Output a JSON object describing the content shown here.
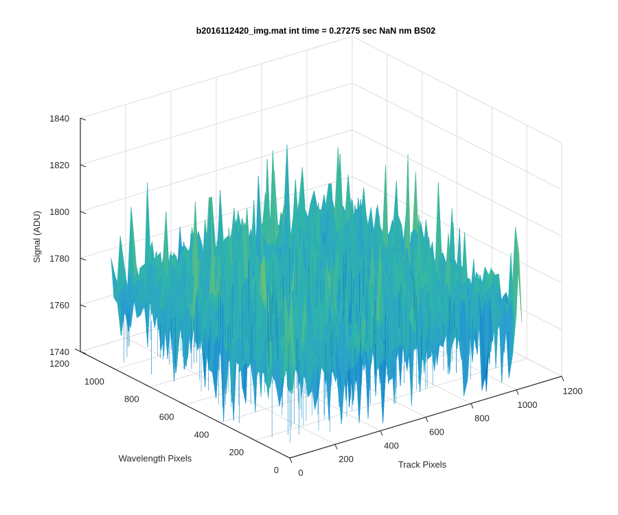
{
  "chart_data": {
    "type": "surface",
    "title": "b2016112420_img.mat int time = 0.27275 sec  NaN nm BS02",
    "xlabel": "Track Pixels",
    "ylabel": "Wavelength Pixels",
    "zlabel": "Signal (ADU)",
    "xlim": [
      0,
      1200
    ],
    "ylim": [
      0,
      1200
    ],
    "zlim": [
      1740,
      1840
    ],
    "x_ticks": [
      "0",
      "200",
      "400",
      "600",
      "800",
      "1000",
      "1200"
    ],
    "y_ticks": [
      "0",
      "200",
      "400",
      "600",
      "800",
      "1000",
      "1200"
    ],
    "z_ticks": [
      "1740",
      "1760",
      "1780",
      "1800",
      "1820",
      "1840"
    ],
    "surface_extent": {
      "x": [
        0,
        1024
      ],
      "y": [
        0,
        1024
      ]
    },
    "signal_mean": 1775,
    "signal_range": [
      1740,
      1830
    ],
    "grid": true,
    "colormap": [
      "#0072bd",
      "#2a9dd2",
      "#2fb5a9",
      "#7fc466",
      "#d8c53a"
    ]
  }
}
